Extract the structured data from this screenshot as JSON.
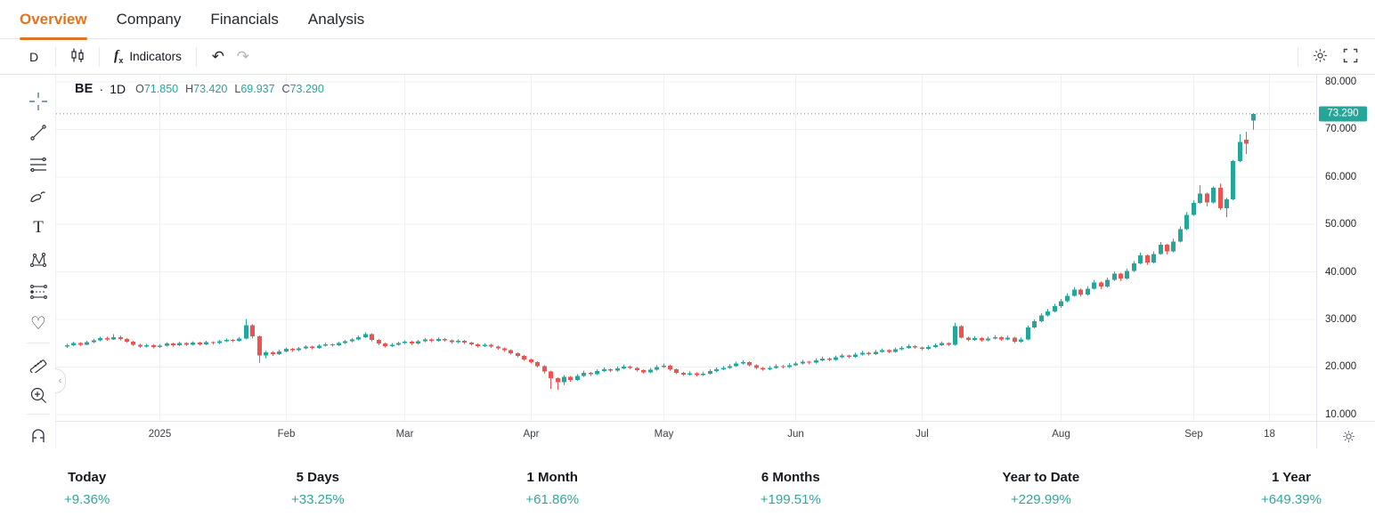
{
  "tabs": [
    {
      "label": "Overview",
      "active": true
    },
    {
      "label": "Company",
      "active": false
    },
    {
      "label": "Financials",
      "active": false
    },
    {
      "label": "Analysis",
      "active": false
    }
  ],
  "toolbar": {
    "interval": "D",
    "fx": "f",
    "fx_sub": "x",
    "indicators": "Indicators",
    "undo": "↶",
    "redo": "↷"
  },
  "chart": {
    "legend": {
      "symbol": "BE",
      "separator": "·",
      "interval": "1D",
      "o_k": "O",
      "o_v": "71.850",
      "h_k": "H",
      "h_v": "73.420",
      "l_k": "L",
      "l_v": "69.937",
      "c_k": "C",
      "c_v": "73.290"
    },
    "collapse_glyph": "‹"
  },
  "stats": [
    {
      "label": "Today",
      "value": "+9.36%"
    },
    {
      "label": "5 Days",
      "value": "+33.25%"
    },
    {
      "label": "1 Month",
      "value": "+61.86%"
    },
    {
      "label": "6 Months",
      "value": "+199.51%"
    },
    {
      "label": "Year to Date",
      "value": "+229.99%"
    },
    {
      "label": "1 Year",
      "value": "+649.39%"
    }
  ],
  "colors": {
    "accent_orange": "#e2741f",
    "up": "#26a69a",
    "down": "#ef5350",
    "stat_teal": "#31a69b",
    "grid": "#eef0f4"
  },
  "chart_data": {
    "type": "candlestick",
    "title": "BE daily candlestick chart, Dec 2024 - Sep 18 2025",
    "symbol": "BE",
    "interval": "1D",
    "last_ohlc": {
      "o": 71.85,
      "h": 73.42,
      "l": 69.937,
      "c": 73.29
    },
    "price_line": 73.29,
    "ylim": [
      10,
      80
    ],
    "y_ticks": [
      80,
      70,
      60,
      50,
      40,
      30,
      20,
      10
    ],
    "x_ticks": [
      {
        "l": "2025",
        "d": 14
      },
      {
        "l": "Feb",
        "d": 33
      },
      {
        "l": "Mar",
        "d": 51
      },
      {
        "l": "Apr",
        "d": 70
      },
      {
        "l": "May",
        "d": 90
      },
      {
        "l": "Jun",
        "d": 110
      },
      {
        "l": "Jul",
        "d": 129
      },
      {
        "l": "Aug",
        "d": 150
      },
      {
        "l": "Sep",
        "d": 170
      },
      {
        "l": "18",
        "d": 181.4
      }
    ],
    "up_color": "#26a69a",
    "down_color": "#ef5350",
    "grid_on": true,
    "candles": [
      [
        24.3,
        24.9,
        24.0,
        24.6
      ],
      [
        24.6,
        25.3,
        24.4,
        25.0
      ],
      [
        25.0,
        25.2,
        24.4,
        24.7
      ],
      [
        24.7,
        25.5,
        24.6,
        25.2
      ],
      [
        25.2,
        25.9,
        25.0,
        25.6
      ],
      [
        25.6,
        26.4,
        25.4,
        26.1
      ],
      [
        26.1,
        26.4,
        25.5,
        25.8
      ],
      [
        25.8,
        26.9,
        25.7,
        26.3
      ],
      [
        26.3,
        26.6,
        25.6,
        25.9
      ],
      [
        25.9,
        26.1,
        25.1,
        25.3
      ],
      [
        25.3,
        25.5,
        24.4,
        24.7
      ],
      [
        24.7,
        24.9,
        24.0,
        24.3
      ],
      [
        24.3,
        24.9,
        24.1,
        24.6
      ],
      [
        24.6,
        24.8,
        23.9,
        24.2
      ],
      [
        24.2,
        24.8,
        24.0,
        24.5
      ],
      [
        24.5,
        25.2,
        24.3,
        24.9
      ],
      [
        24.9,
        25.1,
        24.3,
        24.6
      ],
      [
        24.6,
        25.3,
        24.4,
        25.0
      ],
      [
        25.0,
        25.2,
        24.4,
        24.7
      ],
      [
        24.7,
        25.4,
        24.5,
        25.1
      ],
      [
        25.1,
        25.3,
        24.5,
        24.8
      ],
      [
        24.8,
        25.5,
        24.6,
        25.2
      ],
      [
        25.2,
        25.4,
        24.7,
        25.0
      ],
      [
        25.0,
        25.7,
        24.8,
        25.4
      ],
      [
        25.4,
        26.0,
        25.2,
        25.7
      ],
      [
        25.7,
        25.9,
        25.2,
        25.5
      ],
      [
        25.5,
        26.3,
        25.3,
        26.0
      ],
      [
        26.0,
        30.1,
        25.8,
        28.8
      ],
      [
        28.8,
        29.0,
        26.0,
        26.4
      ],
      [
        26.4,
        26.6,
        20.9,
        22.4
      ],
      [
        22.4,
        23.4,
        21.8,
        23.1
      ],
      [
        23.1,
        23.3,
        22.3,
        22.7
      ],
      [
        22.7,
        23.6,
        22.5,
        23.3
      ],
      [
        23.3,
        24.1,
        23.1,
        23.8
      ],
      [
        23.8,
        24.0,
        23.2,
        23.5
      ],
      [
        23.5,
        24.2,
        23.3,
        23.9
      ],
      [
        23.9,
        24.6,
        23.7,
        24.3
      ],
      [
        24.3,
        24.5,
        23.7,
        24.0
      ],
      [
        24.0,
        24.8,
        23.8,
        24.5
      ],
      [
        24.5,
        25.1,
        24.3,
        24.8
      ],
      [
        24.8,
        25.0,
        24.3,
        24.6
      ],
      [
        24.6,
        25.3,
        24.4,
        25.0
      ],
      [
        25.0,
        25.7,
        24.8,
        25.4
      ],
      [
        25.4,
        26.1,
        25.2,
        25.8
      ],
      [
        25.8,
        26.6,
        25.6,
        26.3
      ],
      [
        26.3,
        27.3,
        26.1,
        26.9
      ],
      [
        26.9,
        27.1,
        25.4,
        25.7
      ],
      [
        25.7,
        25.9,
        24.6,
        24.9
      ],
      [
        24.9,
        25.1,
        24.1,
        24.4
      ],
      [
        24.4,
        25.0,
        24.2,
        24.7
      ],
      [
        24.7,
        25.3,
        24.5,
        25.0
      ],
      [
        25.0,
        25.6,
        24.8,
        25.3
      ],
      [
        25.3,
        25.5,
        24.6,
        24.9
      ],
      [
        24.9,
        25.7,
        24.7,
        25.4
      ],
      [
        25.4,
        26.1,
        25.2,
        25.8
      ],
      [
        25.8,
        26.0,
        25.2,
        25.5
      ],
      [
        25.5,
        26.2,
        25.3,
        25.9
      ],
      [
        25.9,
        26.1,
        25.3,
        25.6
      ],
      [
        25.6,
        25.8,
        24.9,
        25.2
      ],
      [
        25.2,
        25.8,
        25.0,
        25.5
      ],
      [
        25.5,
        25.7,
        24.8,
        25.1
      ],
      [
        25.1,
        25.3,
        24.5,
        24.8
      ],
      [
        24.8,
        25.0,
        24.1,
        24.4
      ],
      [
        24.4,
        25.0,
        24.2,
        24.7
      ],
      [
        24.7,
        24.9,
        24.0,
        24.3
      ],
      [
        24.3,
        24.5,
        23.6,
        23.9
      ],
      [
        23.9,
        24.1,
        23.2,
        23.5
      ],
      [
        23.5,
        23.7,
        22.6,
        22.9
      ],
      [
        22.9,
        23.1,
        22.0,
        22.3
      ],
      [
        22.3,
        22.5,
        21.3,
        21.6
      ],
      [
        21.6,
        21.8,
        20.7,
        21.0
      ],
      [
        21.0,
        21.2,
        19.9,
        20.2
      ],
      [
        20.2,
        20.4,
        18.6,
        19.0
      ],
      [
        19.0,
        19.2,
        15.4,
        17.6
      ],
      [
        17.6,
        17.8,
        15.2,
        16.8
      ],
      [
        16.8,
        18.3,
        16.2,
        17.9
      ],
      [
        17.9,
        18.1,
        16.9,
        17.3
      ],
      [
        17.3,
        18.5,
        17.1,
        18.1
      ],
      [
        18.1,
        19.2,
        17.9,
        18.8
      ],
      [
        18.8,
        19.0,
        18.1,
        18.5
      ],
      [
        18.5,
        19.5,
        18.3,
        19.1
      ],
      [
        19.1,
        19.9,
        18.9,
        19.5
      ],
      [
        19.5,
        19.7,
        18.9,
        19.2
      ],
      [
        19.2,
        20.1,
        19.0,
        19.7
      ],
      [
        19.7,
        20.5,
        19.5,
        20.1
      ],
      [
        20.1,
        20.3,
        19.5,
        19.8
      ],
      [
        19.8,
        20.0,
        19.0,
        19.3
      ],
      [
        19.3,
        19.5,
        18.6,
        18.9
      ],
      [
        18.9,
        19.8,
        18.7,
        19.4
      ],
      [
        19.4,
        20.4,
        19.2,
        20.0
      ],
      [
        20.0,
        20.7,
        19.8,
        20.3
      ],
      [
        20.3,
        20.5,
        19.2,
        19.5
      ],
      [
        19.5,
        19.7,
        18.5,
        18.8
      ],
      [
        18.8,
        19.0,
        18.1,
        18.4
      ],
      [
        18.4,
        19.1,
        18.2,
        18.7
      ],
      [
        18.7,
        18.9,
        18.0,
        18.3
      ],
      [
        18.3,
        19.0,
        18.1,
        18.6
      ],
      [
        18.6,
        19.5,
        18.4,
        19.1
      ],
      [
        19.1,
        19.9,
        18.9,
        19.5
      ],
      [
        19.5,
        20.2,
        19.3,
        19.8
      ],
      [
        19.8,
        20.6,
        19.6,
        20.2
      ],
      [
        20.2,
        21.1,
        20.0,
        20.7
      ],
      [
        20.7,
        21.4,
        20.5,
        21.0
      ],
      [
        21.0,
        21.2,
        20.1,
        20.4
      ],
      [
        20.4,
        20.6,
        19.5,
        19.8
      ],
      [
        19.8,
        20.0,
        19.2,
        19.5
      ],
      [
        19.5,
        20.2,
        19.3,
        19.8
      ],
      [
        19.8,
        20.6,
        19.6,
        20.2
      ],
      [
        20.2,
        20.4,
        19.7,
        20.0
      ],
      [
        20.0,
        20.8,
        19.8,
        20.4
      ],
      [
        20.4,
        21.1,
        20.2,
        20.7
      ],
      [
        20.7,
        21.5,
        20.5,
        21.1
      ],
      [
        21.1,
        21.3,
        20.6,
        20.9
      ],
      [
        20.9,
        21.8,
        20.7,
        21.4
      ],
      [
        21.4,
        22.2,
        21.2,
        21.8
      ],
      [
        21.8,
        22.0,
        21.2,
        21.5
      ],
      [
        21.5,
        22.4,
        21.3,
        22.0
      ],
      [
        22.0,
        22.8,
        21.8,
        22.4
      ],
      [
        22.4,
        22.6,
        21.8,
        22.1
      ],
      [
        22.1,
        23.0,
        21.9,
        22.6
      ],
      [
        22.6,
        23.4,
        22.4,
        23.0
      ],
      [
        23.0,
        23.2,
        22.4,
        22.7
      ],
      [
        22.7,
        23.6,
        22.5,
        23.2
      ],
      [
        23.2,
        23.9,
        23.0,
        23.5
      ],
      [
        23.5,
        23.7,
        22.9,
        23.2
      ],
      [
        23.2,
        24.1,
        23.0,
        23.7
      ],
      [
        23.7,
        24.4,
        23.5,
        24.0
      ],
      [
        24.0,
        24.8,
        23.8,
        24.4
      ],
      [
        24.4,
        24.6,
        23.8,
        24.1
      ],
      [
        24.1,
        24.3,
        23.5,
        23.8
      ],
      [
        23.8,
        24.6,
        23.6,
        24.2
      ],
      [
        24.2,
        25.0,
        24.0,
        24.6
      ],
      [
        24.6,
        25.4,
        24.4,
        25.0
      ],
      [
        25.0,
        25.2,
        24.4,
        24.7
      ],
      [
        24.7,
        29.3,
        24.5,
        28.6
      ],
      [
        28.6,
        28.8,
        26.0,
        26.2
      ],
      [
        26.2,
        26.4,
        25.4,
        25.7
      ],
      [
        25.7,
        26.5,
        25.5,
        26.1
      ],
      [
        26.1,
        26.3,
        25.3,
        25.6
      ],
      [
        25.6,
        26.4,
        25.4,
        26.0
      ],
      [
        26.0,
        26.7,
        25.8,
        26.3
      ],
      [
        26.3,
        26.5,
        25.5,
        25.8
      ],
      [
        25.8,
        26.6,
        25.6,
        26.2
      ],
      [
        26.2,
        26.4,
        25.0,
        25.3
      ],
      [
        25.3,
        26.2,
        25.1,
        25.8
      ],
      [
        25.8,
        28.7,
        25.6,
        28.3
      ],
      [
        28.3,
        30.0,
        28.1,
        29.6
      ],
      [
        29.6,
        31.3,
        29.4,
        30.8
      ],
      [
        30.8,
        32.2,
        30.6,
        31.7
      ],
      [
        31.7,
        33.3,
        31.5,
        32.8
      ],
      [
        32.8,
        34.3,
        32.4,
        33.8
      ],
      [
        33.8,
        35.5,
        33.6,
        35.0
      ],
      [
        35.0,
        36.8,
        34.8,
        36.3
      ],
      [
        36.3,
        36.5,
        34.8,
        35.2
      ],
      [
        35.2,
        37.0,
        35.0,
        36.5
      ],
      [
        36.5,
        38.3,
        36.3,
        37.8
      ],
      [
        37.8,
        38.0,
        36.4,
        36.9
      ],
      [
        36.9,
        38.8,
        36.7,
        38.3
      ],
      [
        38.3,
        40.1,
        38.1,
        39.6
      ],
      [
        39.6,
        39.8,
        38.1,
        38.6
      ],
      [
        38.6,
        40.7,
        38.4,
        40.2
      ],
      [
        40.2,
        42.3,
        40.0,
        41.8
      ],
      [
        41.8,
        44.1,
        41.6,
        43.5
      ],
      [
        43.5,
        43.7,
        41.5,
        42.0
      ],
      [
        42.0,
        44.3,
        41.8,
        43.8
      ],
      [
        43.8,
        46.3,
        43.6,
        45.7
      ],
      [
        45.7,
        45.9,
        43.7,
        44.3
      ],
      [
        44.3,
        47.0,
        44.1,
        46.4
      ],
      [
        46.4,
        49.6,
        46.2,
        49.0
      ],
      [
        49.0,
        52.6,
        48.8,
        52.0
      ],
      [
        52.0,
        55.1,
        51.8,
        54.5
      ],
      [
        54.5,
        58.2,
        54.3,
        56.5
      ],
      [
        56.5,
        56.7,
        53.8,
        54.6
      ],
      [
        54.6,
        58.0,
        54.4,
        57.7
      ],
      [
        57.7,
        58.6,
        53.0,
        53.4
      ],
      [
        53.4,
        55.6,
        51.5,
        55.3
      ],
      [
        55.3,
        63.6,
        55.1,
        63.3
      ],
      [
        63.3,
        69.0,
        63.1,
        67.4
      ],
      [
        67.8,
        69.5,
        64.8,
        67.0
      ],
      [
        71.85,
        73.42,
        69.937,
        73.29
      ]
    ]
  }
}
